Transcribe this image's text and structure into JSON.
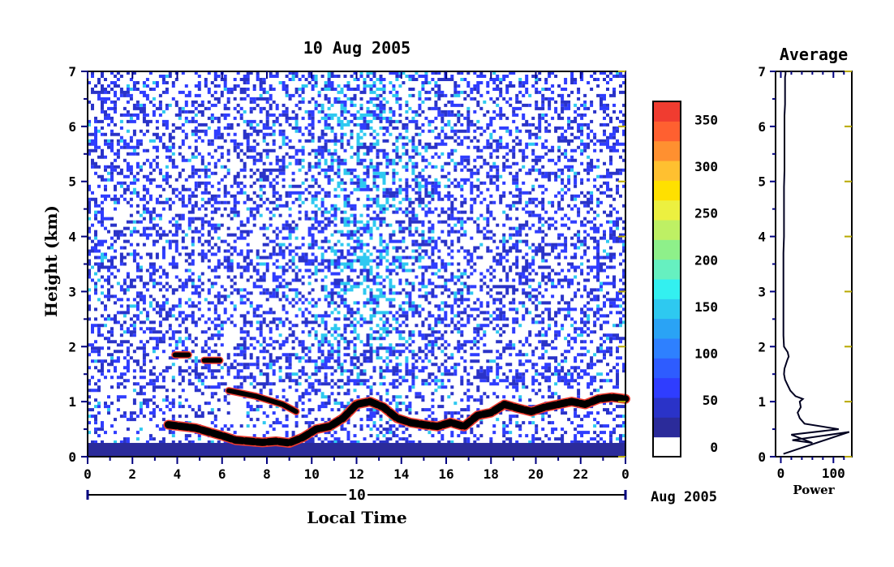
{
  "chart_data": [
    {
      "type": "heatmap",
      "title": "10 Aug 2005",
      "xlabel": "Local Time",
      "ylabel": "Height (km)",
      "x_ticks": [
        "0",
        "2",
        "4",
        "6",
        "8",
        "10",
        "12",
        "14",
        "16",
        "18",
        "20",
        "22",
        "0"
      ],
      "xlim": [
        0,
        24
      ],
      "y_ticks": [
        "0",
        "1",
        "2",
        "3",
        "4",
        "5",
        "6",
        "7"
      ],
      "ylim": [
        0,
        7
      ],
      "date_day": "10",
      "date_month_year": "Aug 2005",
      "colorbar": {
        "ticks": [
          "0",
          "50",
          "100",
          "150",
          "200",
          "250",
          "300",
          "350"
        ],
        "range": [
          0,
          380
        ],
        "colors": [
          "#ffffff",
          "#2b2b9a",
          "#2a33c8",
          "#2f3dff",
          "#2e5cff",
          "#2e80ff",
          "#2aa3f5",
          "#2ec9f0",
          "#33f0f0",
          "#66f0c0",
          "#8ef08a",
          "#bef064",
          "#ecf040",
          "#ffe000",
          "#ffc030",
          "#ff9030",
          "#ff6030",
          "#f03c30"
        ]
      },
      "features": [
        {
          "kind": "surface-layer",
          "x": [
            0,
            24
          ],
          "y": [
            0,
            0.25
          ]
        },
        {
          "kind": "boundary-layer-top",
          "x": [
            3.6,
            4.2,
            4.8,
            5.4,
            6.0,
            6.6,
            7.2,
            7.8,
            8.4,
            9.0,
            9.6,
            10.2,
            10.8,
            11.4,
            12.0,
            12.6,
            13.2,
            13.8,
            14.4,
            15.0,
            15.6,
            16.2,
            16.8,
            17.4,
            18.0,
            18.6,
            19.2,
            19.8,
            20.4,
            21.0,
            21.6,
            22.2,
            22.8,
            23.4,
            24.0
          ],
          "y": [
            0.58,
            0.55,
            0.52,
            0.45,
            0.38,
            0.3,
            0.28,
            0.26,
            0.28,
            0.25,
            0.35,
            0.5,
            0.55,
            0.7,
            0.95,
            1.0,
            0.9,
            0.7,
            0.62,
            0.58,
            0.55,
            0.62,
            0.55,
            0.75,
            0.8,
            0.95,
            0.88,
            0.82,
            0.9,
            0.95,
            1.0,
            0.95,
            1.05,
            1.08,
            1.05
          ]
        },
        {
          "kind": "elevated-layer",
          "x": [
            3.9,
            4.5
          ],
          "y": [
            1.85,
            1.85
          ]
        },
        {
          "kind": "elevated-layer",
          "x": [
            5.2,
            5.9
          ],
          "y": [
            1.75,
            1.75
          ]
        },
        {
          "kind": "residual-layer",
          "x": [
            6.3,
            7.5,
            8.7,
            9.3
          ],
          "y": [
            1.2,
            1.1,
            0.95,
            0.82
          ]
        }
      ]
    },
    {
      "type": "line",
      "title": "Average",
      "xlabel": "Power",
      "ylabel": "",
      "x_ticks": [
        "0",
        "100"
      ],
      "xlim": [
        -10,
        135
      ],
      "y_ticks": [
        "0",
        "1",
        "2",
        "3",
        "4",
        "5",
        "6",
        "7"
      ],
      "ylim": [
        0,
        7
      ],
      "series": [
        {
          "x": [
            5,
            130,
            22,
            60,
            20,
            110,
            45,
            36,
            32,
            38,
            36,
            42,
            28,
            18,
            13,
            8,
            6,
            7,
            12,
            15,
            13,
            6,
            5,
            5,
            5,
            5,
            5,
            5,
            6,
            6,
            6,
            6,
            7,
            7,
            7,
            7,
            7,
            8,
            8,
            8,
            8,
            9,
            9
          ],
          "y": [
            0.05,
            0.45,
            0.3,
            0.25,
            0.4,
            0.5,
            0.6,
            0.7,
            0.8,
            0.9,
            1.0,
            1.05,
            1.1,
            1.2,
            1.3,
            1.4,
            1.5,
            1.6,
            1.75,
            1.82,
            1.9,
            2.0,
            2.2,
            2.5,
            2.8,
            3.1,
            3.4,
            3.7,
            4.0,
            4.3,
            4.6,
            4.9,
            5.2,
            5.5,
            5.8,
            6.0,
            6.2,
            6.4,
            6.6,
            6.8,
            6.9,
            6.95,
            7.0
          ]
        }
      ]
    }
  ]
}
